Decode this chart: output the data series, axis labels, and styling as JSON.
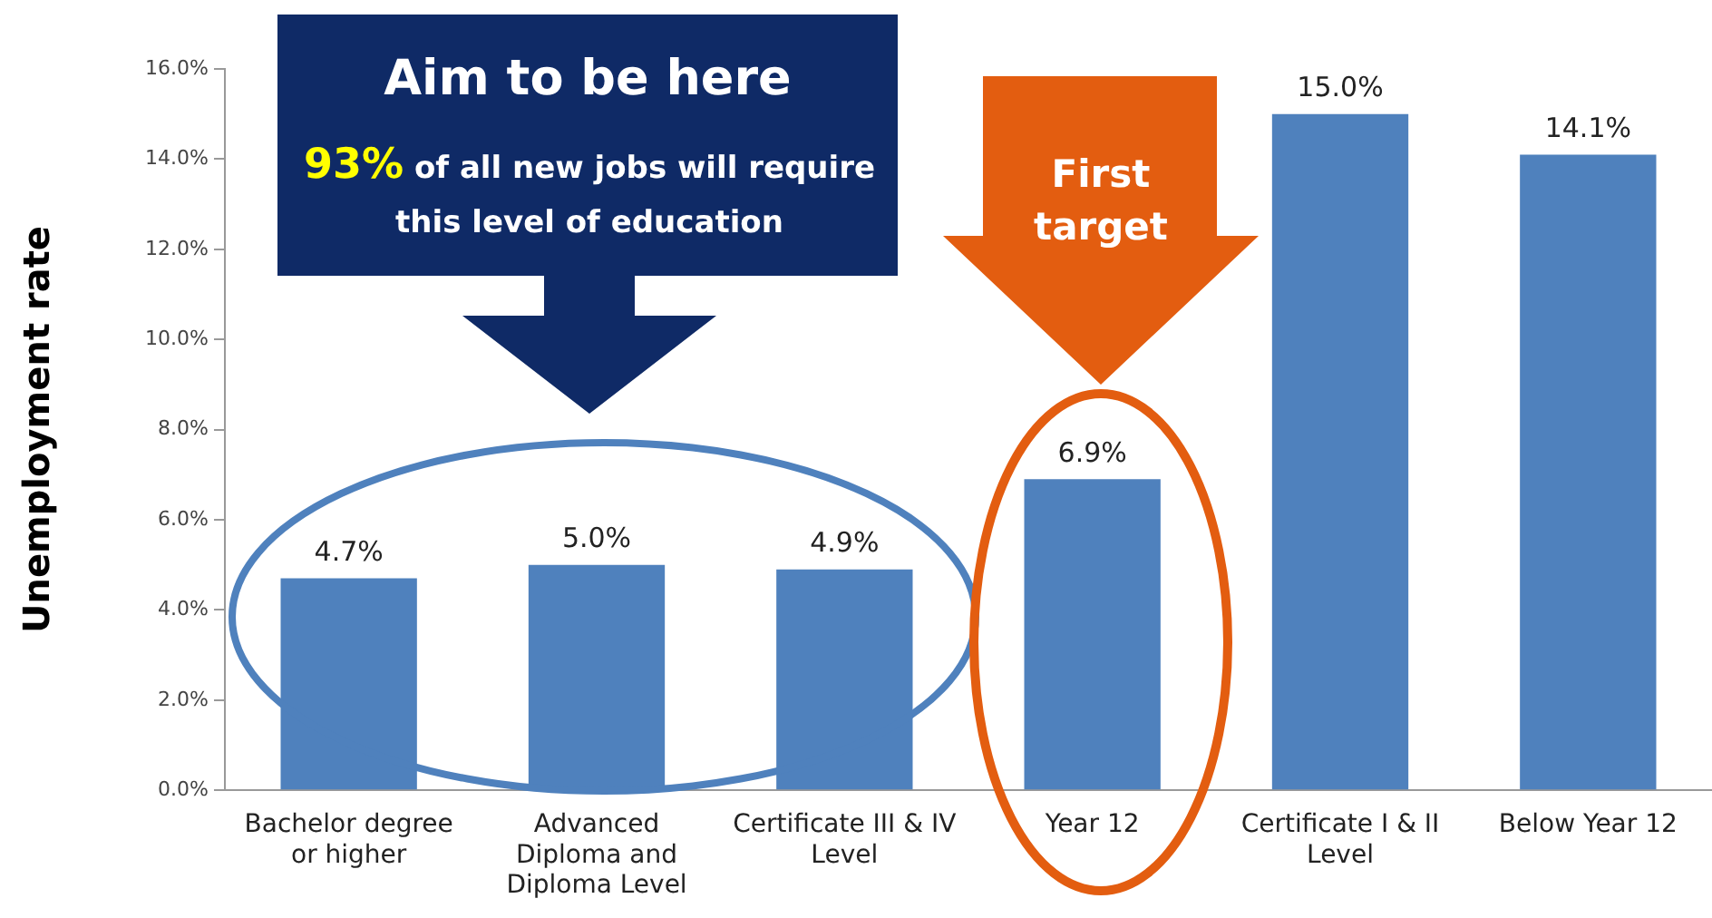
{
  "chart_data": {
    "type": "bar",
    "ylabel": "Unemployment rate",
    "categories": [
      "Bachelor degree or higher",
      "Advanced Diploma and Diploma Level",
      "Certificate III & IV Level",
      "Year 12",
      "Certificate I & II Level",
      "Below Year 12"
    ],
    "values": [
      4.7,
      5.0,
      4.9,
      6.9,
      15.0,
      14.1
    ],
    "color": "#4f81bd",
    "value_labels": [
      "4.7%",
      "5.0%",
      "4.9%",
      "6.9%",
      "15.0%",
      "14.1%"
    ],
    "ylim": [
      0,
      16
    ],
    "yticks": [
      {
        "value": 0,
        "label": "0.0%"
      },
      {
        "value": 2,
        "label": "2.0%"
      },
      {
        "value": 4,
        "label": "4.0%"
      },
      {
        "value": 6,
        "label": "6.0%"
      },
      {
        "value": 8,
        "label": "8.0%"
      },
      {
        "value": 10,
        "label": "10.0%"
      },
      {
        "value": 12,
        "label": "12.0%"
      },
      {
        "value": 14,
        "label": "14.0%"
      },
      {
        "value": 16,
        "label": "16.0%"
      }
    ],
    "grid": false,
    "legend": false,
    "annotations": [
      "Aim to be here",
      "93%",
      "of all new jobs will require this level of education",
      "First target"
    ]
  }
}
